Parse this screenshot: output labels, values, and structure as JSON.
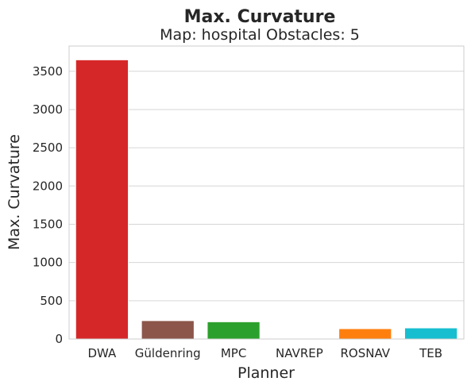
{
  "chart_data": {
    "type": "bar",
    "title": "Max. Curvature",
    "subtitle": "Map: hospital Obstacles: 5",
    "xlabel": "Planner",
    "ylabel": "Max. Curvature",
    "categories": [
      "DWA",
      "Güldenring",
      "MPC",
      "NAVREP",
      "ROSNAV",
      "TEB"
    ],
    "values": [
      3650,
      240,
      225,
      0,
      135,
      145
    ],
    "colors": [
      "#d62728",
      "#8c564b",
      "#2ca02c",
      "#1f77b4",
      "#ff7f0e",
      "#17becf"
    ],
    "yticks": [
      0,
      500,
      1000,
      1500,
      2000,
      2500,
      3000,
      3500
    ],
    "ylim": [
      0,
      3830
    ],
    "grid": true,
    "legend": "none"
  }
}
